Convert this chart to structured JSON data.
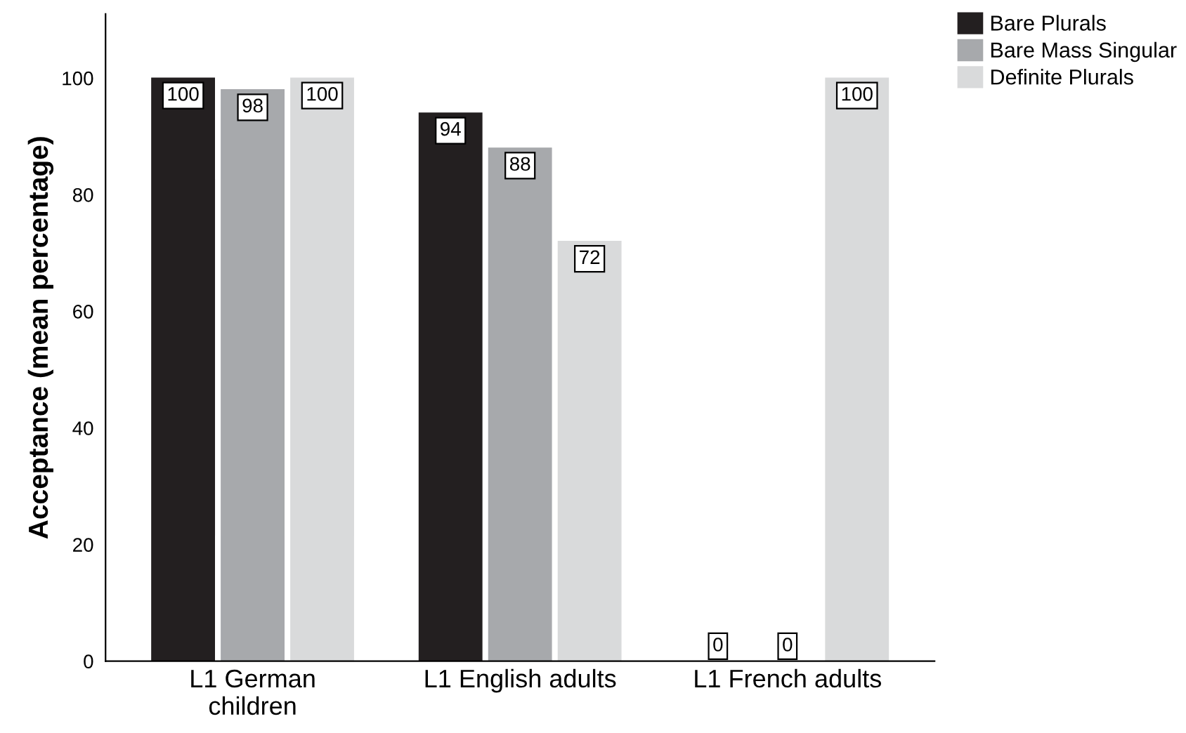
{
  "chart_data": {
    "type": "bar",
    "ylabel": "Acceptance (mean percentage)",
    "categories": [
      "L1 German\nchildren",
      "L1 English adults",
      "L1 French adults"
    ],
    "series": [
      {
        "name": "Bare Plurals",
        "color": "#231f20",
        "values": [
          100,
          94,
          0
        ]
      },
      {
        "name": "Bare Mass Singular",
        "color": "#a7a9ac",
        "values": [
          98,
          88,
          0
        ]
      },
      {
        "name": "Definite Plurals",
        "color": "#d9dadb",
        "values": [
          100,
          72,
          100
        ]
      }
    ],
    "ylim": [
      0,
      111
    ],
    "yticks": [
      0,
      20,
      40,
      60,
      80,
      100
    ],
    "grid": false,
    "legend": "top right",
    "data_labels": true
  }
}
